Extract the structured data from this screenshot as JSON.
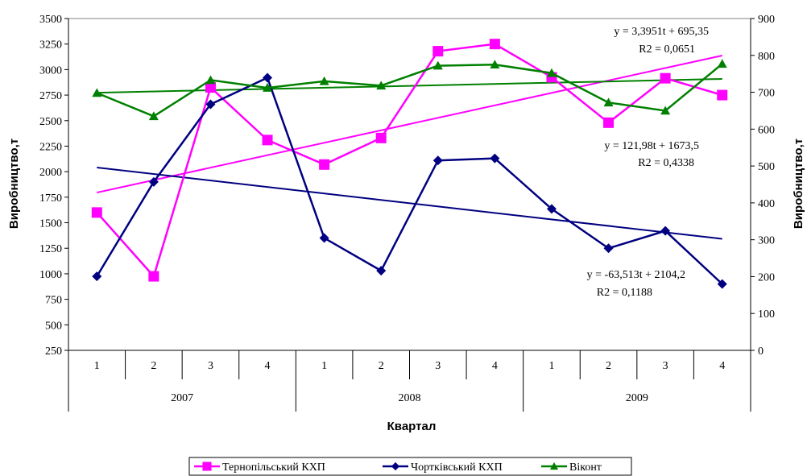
{
  "chart_data": {
    "type": "line",
    "xlabel": "Квартал",
    "ylabel_left": "Виробництво,т",
    "ylabel_right": "Виробництво,т",
    "y_left_range": [
      250,
      3500
    ],
    "y_left_ticks": [
      "250",
      "500",
      "750",
      "1000",
      "1250",
      "1500",
      "1750",
      "2000",
      "2250",
      "2500",
      "2750",
      "3000",
      "3250",
      "3500"
    ],
    "y_right_range": [
      0,
      900
    ],
    "y_right_ticks": [
      "0",
      "100",
      "200",
      "300",
      "400",
      "500",
      "600",
      "700",
      "800",
      "900"
    ],
    "categories": [
      "1",
      "2",
      "3",
      "4",
      "1",
      "2",
      "3",
      "4",
      "1",
      "2",
      "3",
      "4"
    ],
    "years": [
      {
        "label": "2007",
        "span": 4
      },
      {
        "label": "2008",
        "span": 4
      },
      {
        "label": "2009",
        "span": 4
      }
    ],
    "series": [
      {
        "name": "Тернопільський КХП",
        "axis": "left",
        "color": "#ff00ff",
        "marker": "square",
        "values": [
          1600,
          975,
          2825,
          2310,
          2070,
          2330,
          3180,
          3250,
          2925,
          2480,
          2915,
          2750
        ],
        "trend": {
          "slope": 121.98,
          "intercept": 1673.5,
          "label": "y = 121,98t + 1673,5",
          "r2": "R2 = 0,4338"
        }
      },
      {
        "name": "Чортківський КХП",
        "axis": "left",
        "color": "#000080",
        "marker": "diamond",
        "values": [
          975,
          1900,
          2660,
          2920,
          1350,
          1030,
          2110,
          2130,
          1635,
          1250,
          1420,
          900
        ],
        "trend": {
          "slope": -63.513,
          "intercept": 2104.2,
          "label": "y = -63,513t + 2104,2",
          "r2": "R2 = 0,1188"
        }
      },
      {
        "name": "Віконт",
        "axis": "right",
        "color": "#008000",
        "marker": "triangle",
        "values": [
          698,
          635,
          733,
          712,
          730,
          718,
          772,
          775,
          752,
          672,
          650,
          777
        ],
        "trend": {
          "slope": 3.3951,
          "intercept": 695.35,
          "label": "y = 3,3951t + 695,35",
          "r2": "R2 = 0,0651"
        }
      }
    ],
    "legend": "bottom-center",
    "grid": false
  }
}
